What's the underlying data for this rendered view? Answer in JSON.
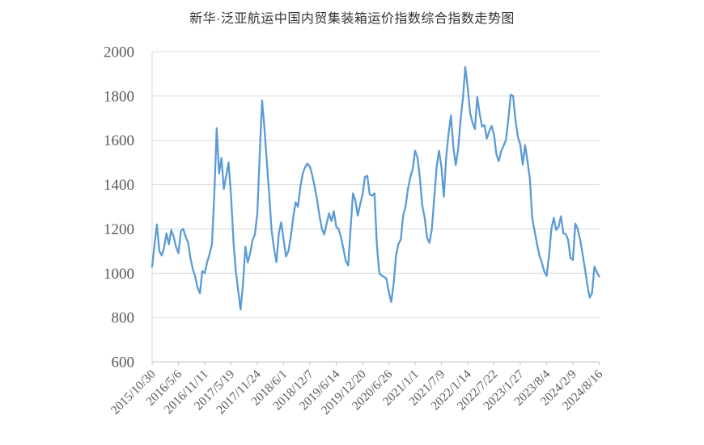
{
  "chart_data": {
    "type": "line",
    "title": "新华·泛亚航运中国内贸集装箱运价指数综合指数走势图",
    "xlabel": "",
    "ylabel": "",
    "ylim": [
      600,
      2000
    ],
    "y_ticks": [
      600,
      800,
      1000,
      1200,
      1400,
      1600,
      1800,
      2000
    ],
    "x_tick_labels": [
      "2015/10/30",
      "2016/5/6",
      "2016/11/11",
      "2017/5/19",
      "2017/11/24",
      "2018/6/1",
      "2018/12/7",
      "2019/6/14",
      "2019/12/20",
      "2020/6/26",
      "2021/1/1",
      "2021/7/9",
      "2022/1/14",
      "2022/7/22",
      "2023/1/27",
      "2023/8/4",
      "2024/2/9",
      "2024/8/16"
    ],
    "grid": "horizontal",
    "legend": "none",
    "line_color": "#5B9BD5",
    "values": [
      1030,
      1130,
      1220,
      1100,
      1080,
      1115,
      1180,
      1130,
      1195,
      1165,
      1120,
      1090,
      1190,
      1200,
      1165,
      1140,
      1070,
      1020,
      985,
      935,
      910,
      1010,
      1000,
      1050,
      1085,
      1130,
      1350,
      1655,
      1450,
      1520,
      1380,
      1440,
      1500,
      1350,
      1145,
      1010,
      920,
      835,
      950,
      1120,
      1048,
      1090,
      1150,
      1175,
      1270,
      1540,
      1780,
      1650,
      1500,
      1350,
      1190,
      1110,
      1050,
      1180,
      1230,
      1150,
      1075,
      1100,
      1165,
      1250,
      1320,
      1300,
      1390,
      1450,
      1480,
      1495,
      1480,
      1440,
      1390,
      1330,
      1260,
      1200,
      1175,
      1225,
      1270,
      1235,
      1280,
      1210,
      1199,
      1163,
      1110,
      1055,
      1035,
      1199,
      1360,
      1330,
      1260,
      1310,
      1355,
      1435,
      1440,
      1355,
      1350,
      1360,
      1130,
      1000,
      990,
      983,
      976,
      915,
      870,
      950,
      1080,
      1130,
      1152,
      1260,
      1300,
      1380,
      1433,
      1470,
      1553,
      1520,
      1430,
      1304,
      1250,
      1160,
      1137,
      1200,
      1340,
      1480,
      1553,
      1480,
      1345,
      1524,
      1632,
      1712,
      1567,
      1488,
      1560,
      1690,
      1790,
      1930,
      1840,
      1723,
      1680,
      1650,
      1795,
      1720,
      1662,
      1669,
      1608,
      1640,
      1665,
      1626,
      1535,
      1506,
      1550,
      1575,
      1603,
      1694,
      1806,
      1800,
      1690,
      1615,
      1580,
      1490,
      1578,
      1505,
      1427,
      1246,
      1190,
      1130,
      1080,
      1048,
      1008,
      988,
      1080,
      1200,
      1250,
      1195,
      1210,
      1257,
      1180,
      1177,
      1150,
      1069,
      1060,
      1224,
      1200,
      1152,
      1090,
      1022,
      950,
      890,
      910,
      1030,
      1005,
      985
    ]
  },
  "style": {
    "grid_color": "#D9D9D9",
    "axis_color": "#BFBFBF",
    "tick_label_color": "#595959",
    "title_color": "#333333",
    "background": "#FFFFFF"
  }
}
